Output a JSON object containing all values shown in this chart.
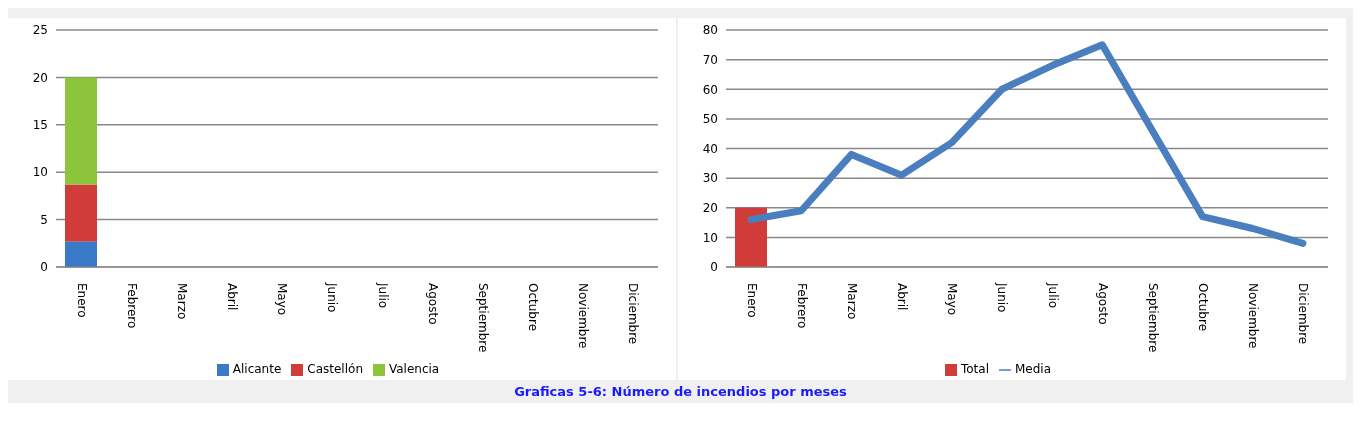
{
  "chart_data": [
    {
      "type": "bar",
      "stacked": true,
      "categories": [
        "Enero",
        "Febrero",
        "Marzo",
        "Abril",
        "Mayo",
        "Junio",
        "Julio",
        "Agosto",
        "Septiembre",
        "Octubre",
        "Noviembre",
        "Diciembre"
      ],
      "series": [
        {
          "name": "Alicante",
          "color": "#3a78c8",
          "values": [
            2.7,
            null,
            null,
            null,
            null,
            null,
            null,
            null,
            null,
            null,
            null,
            null
          ]
        },
        {
          "name": "Castellón",
          "color": "#d03c3a",
          "values": [
            6,
            null,
            null,
            null,
            null,
            null,
            null,
            null,
            null,
            null,
            null,
            null
          ]
        },
        {
          "name": "Valencia",
          "color": "#8cc43c",
          "values": [
            11.3,
            null,
            null,
            null,
            null,
            null,
            null,
            null,
            null,
            null,
            null,
            null
          ]
        }
      ],
      "ylim": [
        0,
        25
      ],
      "yticks": [
        0,
        5,
        10,
        15,
        20,
        25
      ],
      "grid": "y",
      "legend": "bottom",
      "annotations": [
        "Graficas 5-6: Número de incendios por meses"
      ]
    },
    {
      "type": "bar",
      "categories": [
        "Enero",
        "Febrero",
        "Marzo",
        "Abril",
        "Mayo",
        "Junio",
        "Julio",
        "Agosto",
        "Septiembre",
        "Octubre",
        "Noviembre",
        "Diciembre"
      ],
      "series": [
        {
          "name": "Total",
          "color": "#d03c3a",
          "values": [
            20,
            null,
            null,
            null,
            null,
            null,
            null,
            null,
            null,
            null,
            null,
            null
          ]
        },
        {
          "name": "Media",
          "type": "line",
          "color": "#4a7ebf",
          "values": [
            16,
            19,
            38,
            31,
            42,
            60,
            68,
            75,
            46,
            17,
            13,
            8
          ]
        }
      ],
      "ylim": [
        0,
        80
      ],
      "yticks": [
        0,
        10,
        20,
        30,
        40,
        50,
        60,
        70,
        80
      ],
      "grid": "y",
      "legend": "bottom"
    }
  ]
}
